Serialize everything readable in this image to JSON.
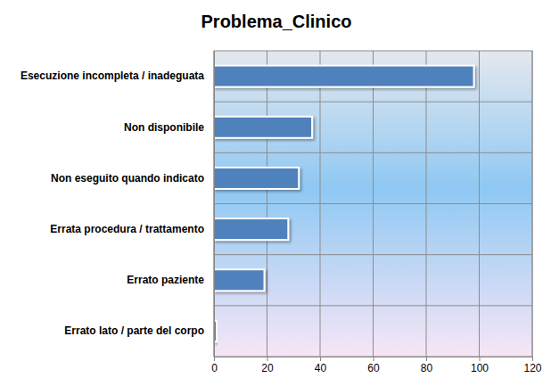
{
  "chart_data": {
    "type": "bar",
    "title": "Problema_Clinico",
    "orientation": "horizontal",
    "categories": [
      "Esecuzione incompleta / inadeguata",
      "Non disponibile",
      "Non eseguito quando indicato",
      "Errata procedura / trattamento",
      "Errato paziente",
      "Errato lato / parte del corpo"
    ],
    "values": [
      98,
      37,
      32,
      28,
      19,
      1
    ],
    "color": "#4f81bd",
    "xlim": [
      0,
      120
    ],
    "xticks": [
      0,
      20,
      40,
      60,
      80,
      100,
      120
    ],
    "grid": true
  }
}
